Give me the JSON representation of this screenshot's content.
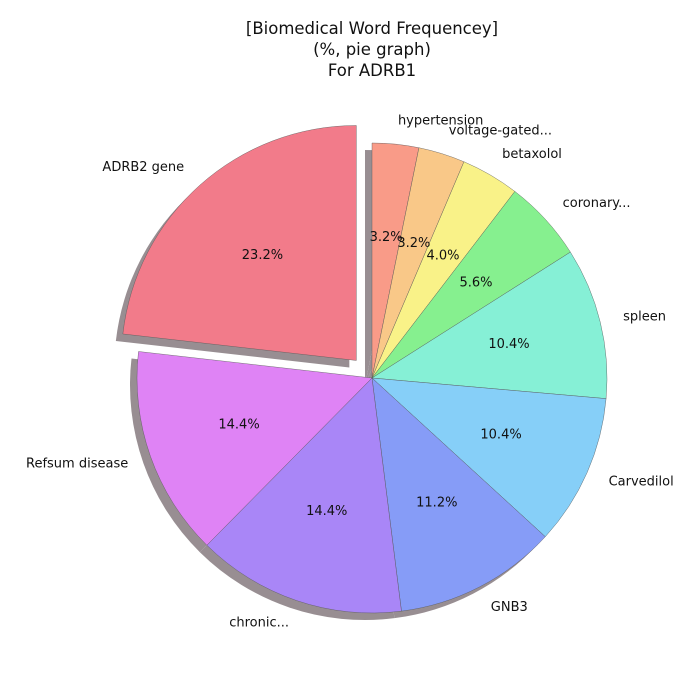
{
  "chart_data": {
    "type": "pie",
    "title_lines": [
      "[Biomedical Word Frequencey]",
      "(%, pie graph)",
      "For ADRB1"
    ],
    "unit": "%",
    "start_angle_deg": 90,
    "direction": "clockwise",
    "shadow": true,
    "slices": [
      {
        "label": "hypertension",
        "value": 3.2,
        "color": "#f99b88",
        "exploded": false
      },
      {
        "label": "voltage-gated...",
        "value": 3.2,
        "color": "#f9c888",
        "exploded": false
      },
      {
        "label": "betaxolol",
        "value": 4.0,
        "color": "#f9f288",
        "exploded": false
      },
      {
        "label": "coronary...",
        "value": 5.6,
        "color": "#86f08f",
        "exploded": false
      },
      {
        "label": "spleen",
        "value": 10.4,
        "color": "#86f0d6",
        "exploded": false
      },
      {
        "label": "Carvedilol",
        "value": 10.4,
        "color": "#86cff8",
        "exploded": false
      },
      {
        "label": "GNB3",
        "value": 11.2,
        "color": "#869cf7",
        "exploded": false
      },
      {
        "label": "chronic...",
        "value": 14.4,
        "color": "#a986f7",
        "exploded": false
      },
      {
        "label": "Refsum disease",
        "value": 14.4,
        "color": "#df83f5",
        "exploded": false
      },
      {
        "label": "ADRB2 gene",
        "value": 23.2,
        "color": "#f27b8a",
        "exploded": true
      }
    ]
  }
}
